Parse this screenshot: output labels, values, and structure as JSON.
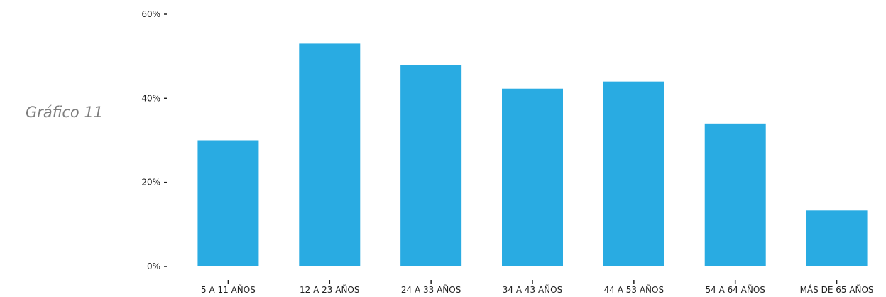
{
  "caption": "Gráfico 11",
  "chart_data": {
    "type": "bar",
    "categories": [
      "5 A 11 AÑOS",
      "12 A 23 AÑOS",
      "24 A 33 AÑOS",
      "34 A 43 AÑOS",
      "44 A 53 AÑOS",
      "54 A 64 AÑOS",
      "MÁS DE 65 AÑOS"
    ],
    "values": [
      30,
      53,
      48,
      42.3,
      44,
      34,
      13.3
    ],
    "ylim": [
      0,
      60
    ],
    "yticks": [
      0,
      20,
      40,
      60
    ],
    "ytick_labels": [
      "0%",
      "20%",
      "40%",
      "60%"
    ],
    "bar_color": "#29ABE2",
    "grid": false,
    "legend": "none",
    "title": "",
    "xlabel": "",
    "ylabel": ""
  }
}
